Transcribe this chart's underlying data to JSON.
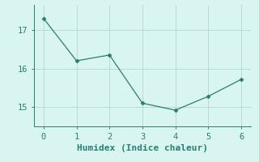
{
  "x": [
    0,
    1,
    2,
    3,
    4,
    5,
    6
  ],
  "y": [
    17.3,
    16.2,
    16.35,
    15.1,
    14.92,
    15.28,
    15.72
  ],
  "line_color": "#2a7d72",
  "marker": "D",
  "marker_size": 2.5,
  "bg_color": "#d8f5ef",
  "grid_color": "#b8ddd8",
  "axis_color": "#2a7d72",
  "xlabel": "Humidex (Indice chaleur)",
  "xlabel_fontsize": 8,
  "tick_fontsize": 7.5,
  "xlim": [
    -0.3,
    6.3
  ],
  "ylim": [
    14.5,
    17.65
  ],
  "yticks": [
    15,
    16,
    17
  ],
  "xticks": [
    0,
    1,
    2,
    3,
    4,
    5,
    6
  ]
}
